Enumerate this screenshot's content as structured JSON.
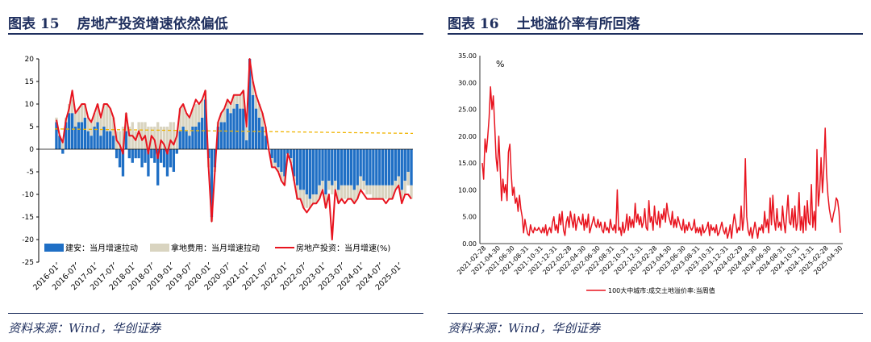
{
  "figures": [
    {
      "number": "图表 15",
      "title": "房地产投资增速依然偏低",
      "source": "资料来源：Wind，华创证券"
    },
    {
      "number": "图表 16",
      "title": "土地溢价率有所回落",
      "source": "资料来源：Wind，华创证券"
    }
  ],
  "chart_data": [
    {
      "type": "bar",
      "stacked": true,
      "title": "",
      "xlabel": "",
      "ylabel": "",
      "ylim": [
        -25,
        20
      ],
      "yticks": [
        20,
        15,
        10,
        5,
        0,
        -5,
        -10,
        -15,
        -20,
        -25
      ],
      "x_tick_labels": [
        "2016-01",
        "2016-07",
        "2017-01",
        "2017-07",
        "2018-01",
        "2018-07",
        "2019-01",
        "2019-07",
        "2020-01",
        "2020-07",
        "2021-01",
        "2021-07",
        "2022-01",
        "2022-07",
        "2023-01",
        "2023-07",
        "2024-01",
        "2024-07",
        "2025-01"
      ],
      "legend_position": "bottom-inside",
      "grid": false,
      "months": [
        "2016-01",
        "2016-02",
        "2016-03",
        "2016-04",
        "2016-05",
        "2016-06",
        "2016-07",
        "2016-08",
        "2016-09",
        "2016-10",
        "2016-11",
        "2016-12",
        "2017-01",
        "2017-02",
        "2017-03",
        "2017-04",
        "2017-05",
        "2017-06",
        "2017-07",
        "2017-08",
        "2017-09",
        "2017-10",
        "2017-11",
        "2017-12",
        "2018-01",
        "2018-02",
        "2018-03",
        "2018-04",
        "2018-05",
        "2018-06",
        "2018-07",
        "2018-08",
        "2018-09",
        "2018-10",
        "2018-11",
        "2018-12",
        "2019-01",
        "2019-02",
        "2019-03",
        "2019-04",
        "2019-05",
        "2019-06",
        "2019-07",
        "2019-08",
        "2019-09",
        "2019-10",
        "2019-11",
        "2019-12",
        "2020-01",
        "2020-02",
        "2020-03",
        "2020-04",
        "2020-05",
        "2020-06",
        "2020-07",
        "2020-08",
        "2020-09",
        "2020-10",
        "2020-11",
        "2020-12",
        "2021-01",
        "2021-02",
        "2021-03",
        "2021-04",
        "2021-05",
        "2021-06",
        "2021-07",
        "2021-08",
        "2021-09",
        "2021-10",
        "2021-11",
        "2021-12",
        "2022-01",
        "2022-02",
        "2022-03",
        "2022-04",
        "2022-05",
        "2022-06",
        "2022-07",
        "2022-08",
        "2022-09",
        "2022-10",
        "2022-11",
        "2022-12",
        "2023-01",
        "2023-02",
        "2023-03",
        "2023-04",
        "2023-05",
        "2023-06",
        "2023-07",
        "2023-08",
        "2023-09",
        "2023-10",
        "2023-11",
        "2023-12",
        "2024-01",
        "2024-02",
        "2024-03",
        "2024-04",
        "2024-05",
        "2024-06",
        "2024-07",
        "2024-08",
        "2024-09",
        "2024-10",
        "2024-11",
        "2024-12",
        "2025-01",
        "2025-02",
        "2025-03",
        "2025-04",
        "2025-05"
      ],
      "series": [
        {
          "name": "建安：当月增速拉动",
          "kind": "bar",
          "color": "#1f6fc5",
          "values": [
            6,
            3,
            -1,
            6,
            8,
            8,
            5,
            6,
            6,
            7,
            4,
            3,
            5,
            6,
            3,
            5,
            4,
            4,
            3,
            -2,
            -4,
            -6,
            4,
            -2,
            -3,
            -2,
            -2,
            -4,
            -3,
            -6,
            -2,
            -3,
            -8,
            -3,
            -4,
            -6,
            -4,
            -5,
            -1,
            4,
            5,
            4,
            3,
            5,
            5,
            6,
            7,
            11,
            -2,
            -15,
            -4,
            5,
            6,
            6,
            9,
            8,
            9,
            10,
            9,
            9,
            2,
            20,
            12,
            9,
            7,
            5,
            3,
            0,
            -2,
            -3,
            -4,
            -5,
            -6,
            -1,
            -2,
            -6,
            -8,
            -9,
            -9,
            -10,
            -11,
            -10,
            -10,
            -8,
            -7,
            -10,
            -7,
            -8,
            -7,
            -9,
            -8,
            -8,
            -8,
            -8,
            -9,
            -8,
            -6,
            -7,
            -8,
            -8,
            -8,
            -8,
            -8,
            -8,
            -8,
            -8,
            -8,
            -7,
            -6,
            -9,
            -7,
            -5,
            -8
          ]
        },
        {
          "name": "拿地费用：当月增速拉动",
          "kind": "bar",
          "color": "#d9d4c0",
          "values": [
            1,
            0,
            2,
            1,
            2,
            3,
            3,
            3,
            4,
            3,
            3,
            3,
            3,
            4,
            4,
            5,
            6,
            5,
            4,
            4,
            4,
            5,
            4,
            5,
            6,
            4,
            6,
            6,
            6,
            5,
            5,
            5,
            6,
            5,
            5,
            5,
            6,
            6,
            4,
            5,
            5,
            4,
            4,
            4,
            5,
            4,
            4,
            2,
            -2,
            -1,
            -1,
            1,
            2,
            3,
            2,
            2,
            3,
            2,
            3,
            4,
            3,
            0,
            3,
            3,
            3,
            3,
            2,
            0,
            -2,
            -1,
            -1,
            -2,
            -2,
            0,
            -1,
            -1,
            -3,
            -2,
            -4,
            -3,
            -2,
            -2,
            -2,
            -3,
            -2,
            -3,
            -2,
            -2,
            -2,
            -3,
            -3,
            -3,
            -3,
            -3,
            -3,
            -3,
            -3,
            -2,
            -2,
            -2,
            -3,
            -3,
            -3,
            -3,
            -3,
            -3,
            -3,
            -2,
            -2,
            -2,
            -3,
            -3,
            -3
          ]
        },
        {
          "name": "房地产投资：当月增速(%)",
          "kind": "line",
          "color": "#e8141f",
          "values": [
            6.5,
            3,
            1.5,
            6.5,
            9,
            13,
            8,
            9,
            10,
            10,
            7,
            6,
            8,
            10,
            7,
            10,
            10,
            9,
            7,
            2,
            1,
            -1,
            8,
            3,
            3,
            2,
            4,
            2,
            3,
            -1,
            3,
            2,
            -2,
            2,
            1,
            -1,
            2,
            1,
            3,
            9,
            10,
            8,
            7,
            9,
            11,
            10,
            11,
            13,
            -4,
            -16,
            -5,
            6,
            8,
            9,
            11,
            10,
            12,
            12,
            12,
            13,
            5,
            20,
            15,
            12,
            10,
            8,
            5,
            0,
            -4,
            -4,
            -5,
            -7,
            -8,
            -1,
            -3,
            -7,
            -11,
            -11,
            -13,
            -14,
            -13,
            -12,
            -12,
            -11,
            -9,
            -13,
            -10,
            -20,
            -9,
            -12,
            -11,
            -12,
            -11,
            -11,
            -12,
            -11,
            -9,
            -10,
            -11,
            -11,
            -11,
            -11,
            -11,
            -11,
            -12,
            -11,
            -11,
            -9,
            -8,
            -12,
            -10,
            -10,
            -11
          ]
        },
        {
          "kind": "trend",
          "color": "#f0b400",
          "dashed": true,
          "values_endpoints": [
            4.5,
            3.5
          ]
        }
      ]
    },
    {
      "type": "line",
      "title": "",
      "unit_label": "%",
      "xlabel": "",
      "ylabel": "",
      "ylim": [
        0,
        35
      ],
      "yticks": [
        "35.00",
        "30.00",
        "25.00",
        "20.00",
        "15.00",
        "10.00",
        "5.00",
        "0.00"
      ],
      "x_tick_labels": [
        "2021-02-28",
        "2021-04-30",
        "2021-06-30",
        "2021-08-31",
        "2021-10-31",
        "2021-12-31",
        "2022-02-28",
        "2022-04-30",
        "2022-06-30",
        "2022-08-31",
        "2022-10-31",
        "2022-12-31",
        "2023-02-28",
        "2023-04-30",
        "2023-06-30",
        "2023-08-31",
        "2023-10-31",
        "2023-12-31",
        "2024-02-29",
        "2024-04-30",
        "2024-06-30",
        "2024-08-31",
        "2024-10-31",
        "2024-12-31",
        "2025-02-28",
        "2025-04-30"
      ],
      "legend_position": "bottom",
      "grid": false,
      "series": [
        {
          "name": "100大中城市:成交土地溢价率:当周值",
          "color": "#e8141f",
          "values": [
            15.0,
            12.0,
            19.5,
            17.0,
            20.0,
            23.5,
            29.2,
            25.0,
            27.5,
            22.0,
            16.0,
            13.5,
            20.0,
            14.0,
            8.0,
            12.0,
            9.5,
            11.0,
            8.0,
            17.0,
            18.5,
            13.0,
            9.0,
            10.5,
            7.5,
            8.5,
            6.0,
            9.0,
            6.5,
            5.0,
            2.0,
            4.5,
            3.0,
            1.8,
            1.5,
            3.5,
            2.5,
            2.0,
            3.0,
            2.5,
            2.5,
            3.0,
            2.5,
            2.0,
            3.0,
            2.0,
            3.5,
            1.5,
            2.5,
            3.0,
            2.0,
            4.0,
            5.0,
            2.5,
            3.5,
            2.0,
            5.5,
            3.5,
            6.0,
            2.5,
            1.5,
            4.0,
            5.0,
            3.0,
            6.0,
            4.5,
            3.0,
            5.5,
            2.5,
            4.0,
            5.0,
            4.0,
            3.5,
            5.5,
            2.5,
            4.5,
            3.0,
            5.5,
            2.0,
            3.0,
            4.0,
            5.0,
            3.5,
            3.0,
            4.5,
            3.0,
            4.0,
            2.5,
            2.0,
            4.0,
            2.5,
            3.0,
            2.0,
            4.5,
            3.0,
            2.5,
            3.5,
            2.0,
            10.0,
            2.5,
            3.0,
            1.5,
            4.0,
            2.0,
            3.0,
            5.5,
            2.5,
            5.0,
            3.0,
            4.5,
            3.0,
            7.5,
            4.0,
            5.5,
            3.5,
            5.0,
            3.0,
            4.0,
            6.5,
            3.0,
            2.5,
            8.0,
            4.0,
            5.0,
            2.5,
            7.0,
            4.0,
            3.5,
            6.0,
            3.0,
            5.5,
            4.5,
            6.5,
            4.0,
            7.5,
            5.5,
            4.5,
            3.5,
            6.0,
            3.0,
            4.5,
            3.0,
            5.0,
            4.0,
            3.0,
            2.5,
            4.5,
            2.0,
            3.5,
            2.5,
            4.0,
            3.0,
            2.5,
            3.0,
            4.5,
            2.0,
            3.0,
            2.0,
            3.0,
            1.5,
            3.5,
            2.0,
            2.5,
            3.0,
            4.0,
            1.5,
            3.5,
            2.5,
            3.0,
            2.0,
            3.5,
            1.5,
            2.0,
            3.0,
            4.0,
            2.5,
            1.8,
            3.0,
            1.0,
            2.0,
            3.5,
            1.0,
            3.5,
            5.5,
            4.0,
            2.0,
            3.0,
            2.5,
            7.0,
            2.5,
            5.0,
            15.8,
            5.0,
            2.5,
            1.5,
            3.0,
            1.0,
            2.5,
            4.0,
            2.5,
            1.0,
            3.0,
            2.5,
            3.5,
            2.0,
            6.0,
            3.0,
            4.5,
            2.0,
            8.5,
            3.5,
            9.0,
            4.5,
            2.5,
            6.5,
            3.0,
            4.0,
            2.5,
            7.0,
            4.0,
            2.0,
            5.5,
            9.0,
            4.0,
            3.5,
            6.5,
            3.0,
            7.0,
            2.5,
            4.0,
            9.5,
            2.5,
            5.0,
            2.0,
            7.0,
            2.5,
            8.0,
            4.0,
            3.5,
            11.0,
            3.0,
            6.0,
            2.5,
            17.5,
            7.0,
            10.0,
            16.0,
            9.5,
            14.0,
            21.5,
            13.0,
            9.0,
            6.5,
            5.0,
            4.0,
            5.5,
            6.5,
            8.5,
            8.0,
            6.0,
            2.0
          ]
        }
      ]
    }
  ]
}
